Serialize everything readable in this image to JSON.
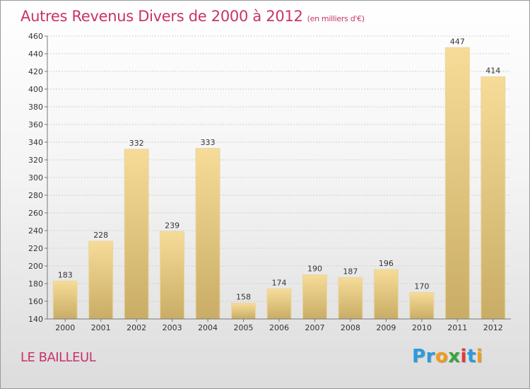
{
  "chart_data": {
    "type": "bar",
    "title": "Autres Revenus Divers de 2000 à 2012",
    "subtitle": "(en milliers d'€)",
    "categories": [
      "2000",
      "2001",
      "2002",
      "2003",
      "2004",
      "2005",
      "2006",
      "2007",
      "2008",
      "2009",
      "2010",
      "2011",
      "2012"
    ],
    "values": [
      183,
      228,
      332,
      239,
      333,
      158,
      174,
      190,
      187,
      196,
      170,
      447,
      414
    ],
    "ylim": [
      140,
      460
    ],
    "yticks": [
      140,
      160,
      180,
      200,
      220,
      240,
      260,
      280,
      300,
      320,
      340,
      360,
      380,
      400,
      420,
      440,
      460
    ],
    "grid": true,
    "bar_color_light": "#f6dc98",
    "bar_color_dark": "#c9ad66",
    "title_color": "#c8336c"
  },
  "footer": {
    "city": "LE BAILLEUL",
    "logo_letters": [
      {
        "ch": "P",
        "color": "#2a9be0"
      },
      {
        "ch": "r",
        "color": "#2a9be0"
      },
      {
        "ch": "o",
        "color": "#f29a1c"
      },
      {
        "ch": "x",
        "color": "#3aa33a"
      },
      {
        "ch": "i",
        "color": "#e23a3a"
      },
      {
        "ch": "t",
        "color": "#2a9be0"
      },
      {
        "ch": "i",
        "color": "#f29a1c"
      }
    ]
  }
}
